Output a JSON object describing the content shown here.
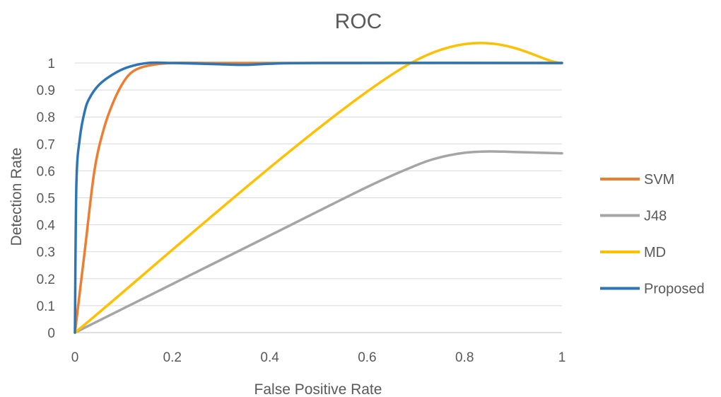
{
  "chart_data": {
    "type": "line",
    "title": "ROC",
    "xlabel": "False Positive Rate",
    "ylabel": "Detection Rate",
    "xlim": [
      0,
      1
    ],
    "ylim": [
      0,
      1
    ],
    "x_ticks": [
      "0",
      "0.2",
      "0.4",
      "0.6",
      "0.8",
      "1"
    ],
    "y_ticks": [
      "0",
      "0.1",
      "0.2",
      "0.3",
      "0.4",
      "0.5",
      "0.6",
      "0.7",
      "0.8",
      "0.9",
      "1"
    ],
    "grid": true,
    "legend_position": "right",
    "series": [
      {
        "name": "SVM",
        "color": "#ED7D31",
        "points": [
          [
            0,
            0
          ],
          [
            0.02,
            0.3
          ],
          [
            0.04,
            0.6
          ],
          [
            0.06,
            0.76
          ],
          [
            0.08,
            0.86
          ],
          [
            0.1,
            0.93
          ],
          [
            0.12,
            0.97
          ],
          [
            0.15,
            0.99
          ],
          [
            0.2,
            1.0
          ],
          [
            0.3,
            1.0
          ],
          [
            0.5,
            1.0
          ],
          [
            0.7,
            1.0
          ],
          [
            1.0,
            1.0
          ]
        ]
      },
      {
        "name": "J48",
        "color": "#A5A5A5",
        "points": [
          [
            0,
            0
          ],
          [
            0.2,
            0.18
          ],
          [
            0.4,
            0.36
          ],
          [
            0.6,
            0.54
          ],
          [
            0.7,
            0.62
          ],
          [
            0.75,
            0.65
          ],
          [
            0.8,
            0.667
          ],
          [
            0.85,
            0.672
          ],
          [
            0.9,
            0.67
          ],
          [
            1.0,
            0.665
          ]
        ]
      },
      {
        "name": "MD",
        "color": "#FFC000",
        "points": [
          [
            0,
            0
          ],
          [
            0.69,
            1.0
          ],
          [
            1.0,
            1.0
          ]
        ]
      },
      {
        "name": "Proposed",
        "color": "#2E75B6",
        "points": [
          [
            0,
            0
          ],
          [
            0.003,
            0.55
          ],
          [
            0.01,
            0.72
          ],
          [
            0.02,
            0.82
          ],
          [
            0.03,
            0.87
          ],
          [
            0.05,
            0.92
          ],
          [
            0.08,
            0.96
          ],
          [
            0.11,
            0.985
          ],
          [
            0.15,
            1.0
          ],
          [
            0.2,
            1.0
          ],
          [
            0.3,
            0.995
          ],
          [
            0.35,
            0.993
          ],
          [
            0.4,
            0.997
          ],
          [
            0.5,
            1.0
          ],
          [
            1.0,
            1.0
          ]
        ]
      }
    ]
  }
}
